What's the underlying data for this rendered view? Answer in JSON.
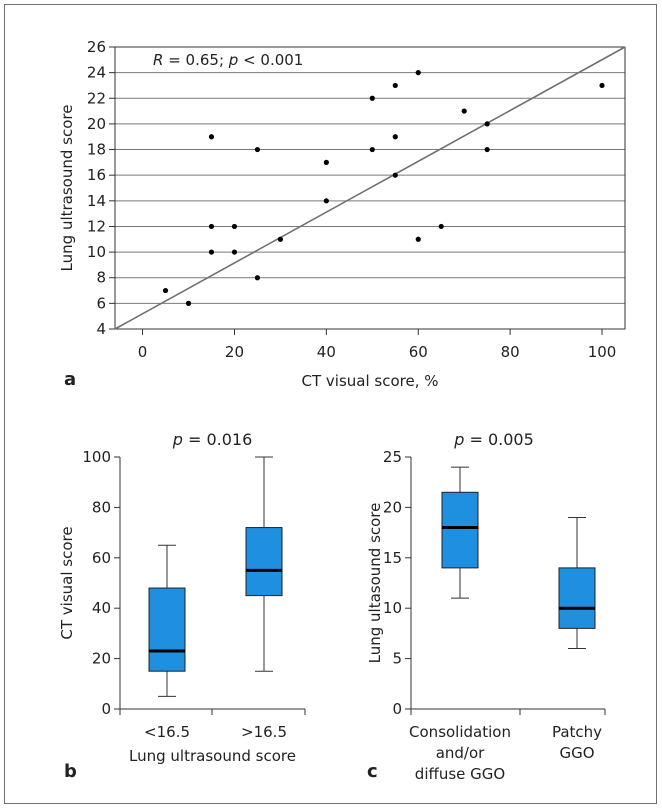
{
  "chart_data": [
    {
      "panel": "a",
      "type": "scatter",
      "annotation": "R = 0.65; p < 0.001",
      "xlabel": "CT visual score, %",
      "ylabel": "Lung ultrasound score",
      "xlim": [
        -6,
        105
      ],
      "ylim": [
        4,
        26
      ],
      "xticks": [
        0,
        20,
        40,
        60,
        80,
        100
      ],
      "yticks": [
        4,
        6,
        8,
        10,
        12,
        14,
        16,
        18,
        20,
        22,
        24,
        26
      ],
      "grid": "horizontal",
      "points": [
        {
          "x": 5,
          "y": 7
        },
        {
          "x": 10,
          "y": 6
        },
        {
          "x": 15,
          "y": 19
        },
        {
          "x": 15,
          "y": 12
        },
        {
          "x": 15,
          "y": 10
        },
        {
          "x": 20,
          "y": 12
        },
        {
          "x": 20,
          "y": 10
        },
        {
          "x": 25,
          "y": 18
        },
        {
          "x": 25,
          "y": 8
        },
        {
          "x": 30,
          "y": 11
        },
        {
          "x": 40,
          "y": 17
        },
        {
          "x": 40,
          "y": 14
        },
        {
          "x": 50,
          "y": 22
        },
        {
          "x": 50,
          "y": 18
        },
        {
          "x": 55,
          "y": 23
        },
        {
          "x": 55,
          "y": 19
        },
        {
          "x": 55,
          "y": 16
        },
        {
          "x": 60,
          "y": 24
        },
        {
          "x": 60,
          "y": 11
        },
        {
          "x": 65,
          "y": 12
        },
        {
          "x": 70,
          "y": 21
        },
        {
          "x": 75,
          "y": 20
        },
        {
          "x": 75,
          "y": 18
        },
        {
          "x": 100,
          "y": 23
        }
      ],
      "fit_line": {
        "x": [
          -6,
          105
        ],
        "y": [
          4,
          26
        ]
      }
    },
    {
      "panel": "b",
      "type": "box",
      "title": "p = 0.016",
      "xlabel": "Lung ultrasound score",
      "ylabel": "CT visual score",
      "ylim": [
        0,
        100
      ],
      "yticks": [
        0,
        20,
        40,
        60,
        80,
        100
      ],
      "categories": [
        "<16.5",
        ">16.5"
      ],
      "boxes": [
        {
          "min": 5,
          "q1": 15,
          "median": 23,
          "q3": 48,
          "max": 65
        },
        {
          "min": 15,
          "q1": 45,
          "median": 55,
          "q3": 72,
          "max": 100
        }
      ],
      "box_color": "#1f8fe0"
    },
    {
      "panel": "c",
      "type": "box",
      "title": "p = 0.005",
      "xlabel": "",
      "ylabel": "Lung ultasound score",
      "ylim": [
        0,
        25
      ],
      "yticks": [
        0,
        5,
        10,
        15,
        20,
        25
      ],
      "categories": [
        "Consolidation and/or diffuse GGO",
        "Patchy GGO"
      ],
      "category_lines": [
        [
          "Consolidation",
          "and/or",
          "diffuse GGO"
        ],
        [
          "Patchy",
          "GGO"
        ]
      ],
      "boxes": [
        {
          "min": 11,
          "q1": 14,
          "median": 18,
          "q3": 21.5,
          "max": 24
        },
        {
          "min": 6,
          "q1": 8,
          "median": 10,
          "q3": 14,
          "max": 19
        }
      ],
      "box_color": "#1f8fe0"
    }
  ],
  "panel_labels": {
    "a": "a",
    "b": "b",
    "c": "c"
  },
  "colors": {
    "frame": "#6f6f6f",
    "grid": "#7a7a7a",
    "box_fill": "#1f8fe0",
    "fit_line": "#707070"
  }
}
